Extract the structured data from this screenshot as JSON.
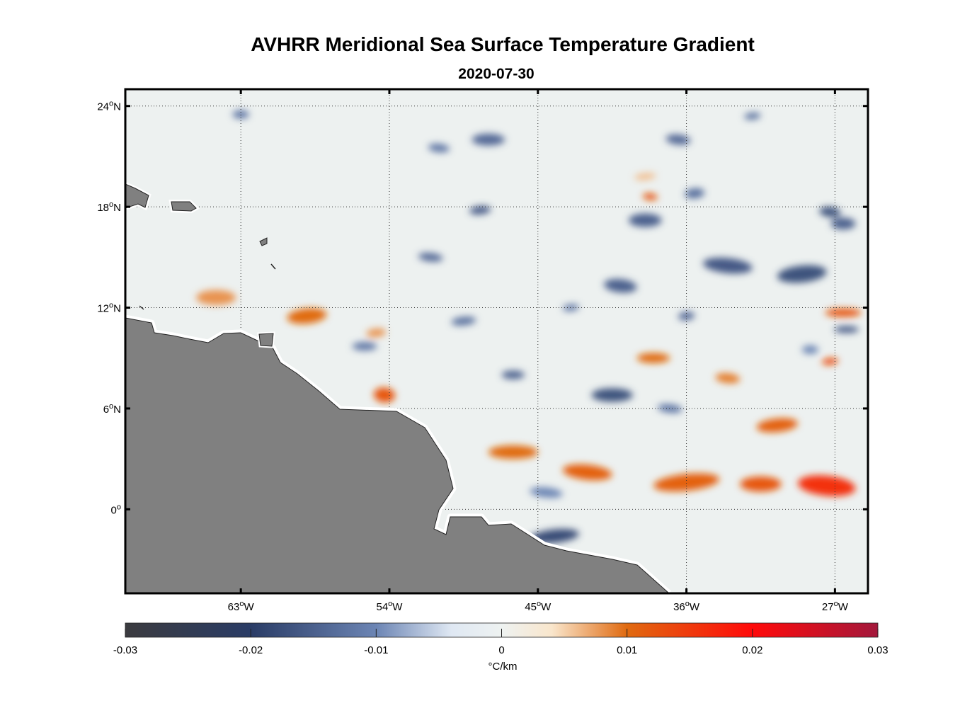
{
  "title": "AVHRR Meridional Sea Surface Temperature Gradient",
  "date": "2020-07-30",
  "map": {
    "lon_range": [
      -70,
      -25
    ],
    "lat_range": [
      -5,
      25
    ],
    "lat_ticks": [
      {
        "value": 24,
        "label": "24",
        "hemi": "N"
      },
      {
        "value": 18,
        "label": "18",
        "hemi": "N"
      },
      {
        "value": 12,
        "label": "12",
        "hemi": "N"
      },
      {
        "value": 6,
        "label": "6",
        "hemi": "N"
      },
      {
        "value": 0,
        "label": "0",
        "hemi": ""
      }
    ],
    "lon_ticks": [
      {
        "value": -63,
        "label": "63",
        "hemi": "W"
      },
      {
        "value": -54,
        "label": "54",
        "hemi": "W"
      },
      {
        "value": -45,
        "label": "45",
        "hemi": "W"
      },
      {
        "value": -36,
        "label": "36",
        "hemi": "W"
      },
      {
        "value": -27,
        "label": "27",
        "hemi": "W"
      }
    ],
    "land_color": "#808080",
    "features": [
      {
        "lon": -59.0,
        "lat": 11.5,
        "w": 2.4,
        "h": 0.9,
        "value": 0.01
      },
      {
        "lon": -64.5,
        "lat": 12.6,
        "w": 2.4,
        "h": 0.9,
        "value": 0.008
      },
      {
        "lon": -54.3,
        "lat": 6.8,
        "w": 1.3,
        "h": 0.9,
        "value": 0.012
      },
      {
        "lon": -54.8,
        "lat": 10.5,
        "w": 1.2,
        "h": 0.5,
        "value": 0.008
      },
      {
        "lon": -46.5,
        "lat": 3.4,
        "w": 3.0,
        "h": 0.8,
        "value": 0.01
      },
      {
        "lon": -42.0,
        "lat": 2.2,
        "w": 3.0,
        "h": 0.9,
        "value": 0.011
      },
      {
        "lon": -36.0,
        "lat": 1.6,
        "w": 4.0,
        "h": 1.0,
        "value": 0.011
      },
      {
        "lon": -31.5,
        "lat": 1.5,
        "w": 2.5,
        "h": 0.9,
        "value": 0.012
      },
      {
        "lon": -27.5,
        "lat": 1.4,
        "w": 3.5,
        "h": 1.2,
        "value": 0.016
      },
      {
        "lon": -30.5,
        "lat": 5.0,
        "w": 2.5,
        "h": 0.8,
        "value": 0.011
      },
      {
        "lon": -38.0,
        "lat": 9.0,
        "w": 2.0,
        "h": 0.6,
        "value": 0.01
      },
      {
        "lon": -33.5,
        "lat": 7.8,
        "w": 1.5,
        "h": 0.6,
        "value": 0.009
      },
      {
        "lon": -27.3,
        "lat": 8.8,
        "w": 1.0,
        "h": 0.4,
        "value": 0.013
      },
      {
        "lon": -26.5,
        "lat": 11.7,
        "w": 2.2,
        "h": 0.5,
        "value": 0.012
      },
      {
        "lon": -38.2,
        "lat": 18.6,
        "w": 0.9,
        "h": 0.4,
        "value": 0.012
      },
      {
        "lon": -38.5,
        "lat": 19.8,
        "w": 1.3,
        "h": 0.4,
        "value": 0.006
      },
      {
        "lon": -38.5,
        "lat": 17.2,
        "w": 2.0,
        "h": 0.8,
        "value": -0.015
      },
      {
        "lon": -33.5,
        "lat": 14.5,
        "w": 3.0,
        "h": 0.9,
        "value": -0.016
      },
      {
        "lon": -29.0,
        "lat": 14.0,
        "w": 3.0,
        "h": 1.0,
        "value": -0.017
      },
      {
        "lon": -26.5,
        "lat": 17.0,
        "w": 1.5,
        "h": 0.7,
        "value": -0.015
      },
      {
        "lon": -40.0,
        "lat": 13.3,
        "w": 2.0,
        "h": 0.8,
        "value": -0.015
      },
      {
        "lon": -35.5,
        "lat": 18.8,
        "w": 1.2,
        "h": 0.6,
        "value": -0.013
      },
      {
        "lon": -40.5,
        "lat": 6.8,
        "w": 2.5,
        "h": 0.8,
        "value": -0.017
      },
      {
        "lon": -37.0,
        "lat": 6.0,
        "w": 1.5,
        "h": 0.5,
        "value": -0.012
      },
      {
        "lon": -44.0,
        "lat": -1.6,
        "w": 3.0,
        "h": 0.8,
        "value": -0.018
      },
      {
        "lon": -46.5,
        "lat": 8.0,
        "w": 1.4,
        "h": 0.5,
        "value": -0.015
      },
      {
        "lon": -51.5,
        "lat": 15.0,
        "w": 1.5,
        "h": 0.5,
        "value": -0.014
      },
      {
        "lon": -48.5,
        "lat": 17.8,
        "w": 1.3,
        "h": 0.5,
        "value": -0.016
      },
      {
        "lon": -48.0,
        "lat": 22.0,
        "w": 2.0,
        "h": 0.7,
        "value": -0.014
      },
      {
        "lon": -51.0,
        "lat": 21.5,
        "w": 1.3,
        "h": 0.5,
        "value": -0.012
      },
      {
        "lon": -49.5,
        "lat": 11.2,
        "w": 1.5,
        "h": 0.5,
        "value": -0.013
      },
      {
        "lon": -55.5,
        "lat": 9.7,
        "w": 1.5,
        "h": 0.5,
        "value": -0.012
      },
      {
        "lon": -36.5,
        "lat": 22.0,
        "w": 1.5,
        "h": 0.6,
        "value": -0.014
      },
      {
        "lon": -32.0,
        "lat": 23.4,
        "w": 1.0,
        "h": 0.4,
        "value": -0.013
      },
      {
        "lon": -26.3,
        "lat": 10.7,
        "w": 1.5,
        "h": 0.4,
        "value": -0.016
      },
      {
        "lon": -27.3,
        "lat": 17.7,
        "w": 1.3,
        "h": 0.6,
        "value": -0.017
      },
      {
        "lon": -36.0,
        "lat": 11.5,
        "w": 1.0,
        "h": 0.5,
        "value": -0.014
      },
      {
        "lon": -63.0,
        "lat": 23.5,
        "w": 1.0,
        "h": 0.5,
        "value": -0.012
      },
      {
        "lon": -44.5,
        "lat": 1.0,
        "w": 2.0,
        "h": 0.6,
        "value": -0.01
      },
      {
        "lon": -43.0,
        "lat": 12.0,
        "w": 1.0,
        "h": 0.4,
        "value": -0.012
      },
      {
        "lon": -28.5,
        "lat": 9.5,
        "w": 1.0,
        "h": 0.5,
        "value": -0.01
      }
    ]
  },
  "colorbar": {
    "min": -0.03,
    "max": 0.03,
    "tick_values": [
      -0.03,
      -0.02,
      -0.01,
      0,
      0.01,
      0.02,
      0.03
    ],
    "tick_labels": [
      "-0.03",
      "-0.02",
      "-0.01",
      "0",
      "0.01",
      "0.02",
      "0.03"
    ],
    "units": "°C/km",
    "stops": [
      {
        "value": -0.03,
        "color": "#3b3b3f"
      },
      {
        "value": -0.02,
        "color": "#2a3c66"
      },
      {
        "value": -0.01,
        "color": "#6c85b4"
      },
      {
        "value": -0.004,
        "color": "#dfe8f3"
      },
      {
        "value": 0,
        "color": "#eef2f1"
      },
      {
        "value": 0.004,
        "color": "#f9e6cc"
      },
      {
        "value": 0.01,
        "color": "#e06a10"
      },
      {
        "value": 0.02,
        "color": "#ff0a0a"
      },
      {
        "value": 0.03,
        "color": "#a3183c"
      }
    ]
  }
}
